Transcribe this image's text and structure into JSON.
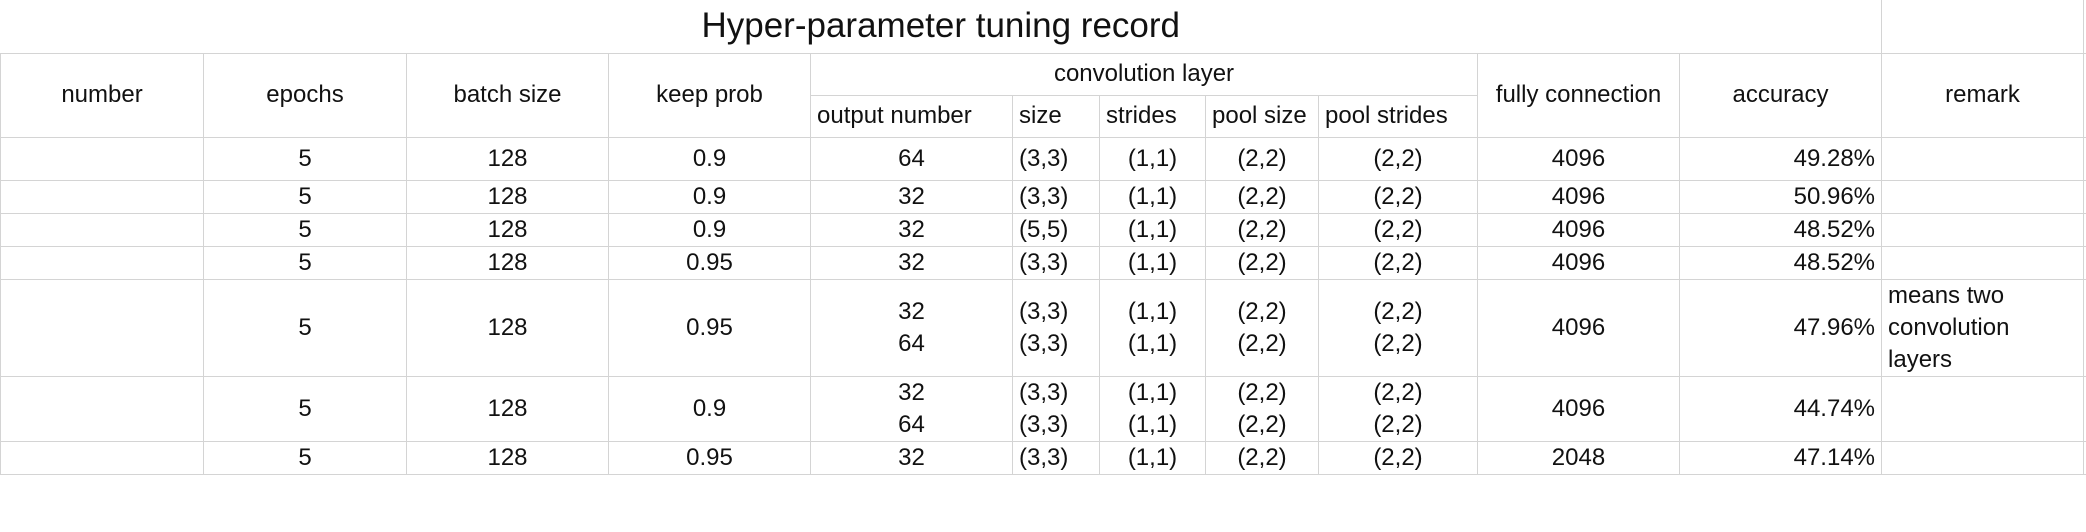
{
  "title": "Hyper-parameter tuning record",
  "headers": {
    "number": "number",
    "epochs": "epochs",
    "batch_size": "batch size",
    "keep_prob": "keep prob",
    "convolution_layer": "convolution layer",
    "output_number": "output number",
    "size": "size",
    "strides": "strides",
    "pool_size": "pool size",
    "pool_strides": "pool strides",
    "fully_connection": "fully connection",
    "accuracy": "accuracy",
    "remark": "remark"
  },
  "rows": [
    {
      "number": "",
      "epochs": "5",
      "batch_size": "128",
      "keep_prob": "0.9",
      "output_number": [
        "64"
      ],
      "size": [
        "(3,3)"
      ],
      "strides": [
        "(1,1)"
      ],
      "pool_size": [
        "(2,2)"
      ],
      "pool_strides": [
        "(2,2)"
      ],
      "fully_connection": "4096",
      "accuracy": "49.28%",
      "remark": ""
    },
    {
      "number": "",
      "epochs": "5",
      "batch_size": "128",
      "keep_prob": "0.9",
      "output_number": [
        "32"
      ],
      "size": [
        "(3,3)"
      ],
      "strides": [
        "(1,1)"
      ],
      "pool_size": [
        "(2,2)"
      ],
      "pool_strides": [
        "(2,2)"
      ],
      "fully_connection": "4096",
      "accuracy": "50.96%",
      "remark": ""
    },
    {
      "number": "",
      "epochs": "5",
      "batch_size": "128",
      "keep_prob": "0.9",
      "output_number": [
        "32"
      ],
      "size": [
        "(5,5)"
      ],
      "strides": [
        "(1,1)"
      ],
      "pool_size": [
        "(2,2)"
      ],
      "pool_strides": [
        "(2,2)"
      ],
      "fully_connection": "4096",
      "accuracy": "48.52%",
      "remark": ""
    },
    {
      "number": "",
      "epochs": "5",
      "batch_size": "128",
      "keep_prob": "0.95",
      "output_number": [
        "32"
      ],
      "size": [
        "(3,3)"
      ],
      "strides": [
        "(1,1)"
      ],
      "pool_size": [
        "(2,2)"
      ],
      "pool_strides": [
        "(2,2)"
      ],
      "fully_connection": "4096",
      "accuracy": "48.52%",
      "remark": ""
    },
    {
      "number": "",
      "epochs": "5",
      "batch_size": "128",
      "keep_prob": "0.95",
      "output_number": [
        "32",
        "64"
      ],
      "size": [
        "(3,3)",
        "(3,3)"
      ],
      "strides": [
        "(1,1)",
        "(1,1)"
      ],
      "pool_size": [
        "(2,2)",
        "(2,2)"
      ],
      "pool_strides": [
        "(2,2)",
        "(2,2)"
      ],
      "fully_connection": "4096",
      "accuracy": "47.96%",
      "remark": "means two convolution layers"
    },
    {
      "number": "",
      "epochs": "5",
      "batch_size": "128",
      "keep_prob": "0.9",
      "output_number": [
        "32",
        "64"
      ],
      "size": [
        "(3,3)",
        "(3,3)"
      ],
      "strides": [
        "(1,1)",
        "(1,1)"
      ],
      "pool_size": [
        "(2,2)",
        "(2,2)"
      ],
      "pool_strides": [
        "(2,2)",
        "(2,2)"
      ],
      "fully_connection": "4096",
      "accuracy": "44.74%",
      "remark": ""
    },
    {
      "number": "",
      "epochs": "5",
      "batch_size": "128",
      "keep_prob": "0.95",
      "output_number": [
        "32"
      ],
      "size": [
        "(3,3)"
      ],
      "strides": [
        "(1,1)"
      ],
      "pool_size": [
        "(2,2)"
      ],
      "pool_strides": [
        "(2,2)"
      ],
      "fully_connection": "2048",
      "accuracy": "47.14%",
      "remark": ""
    }
  ]
}
